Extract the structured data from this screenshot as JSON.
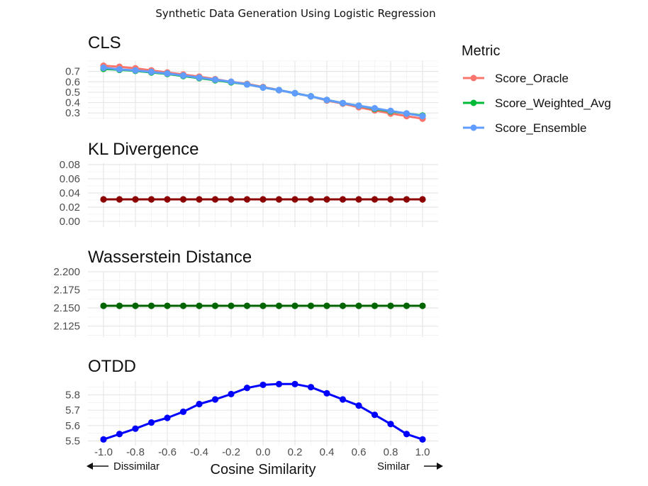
{
  "title": "Synthetic Data Generation Using Logistic Regression",
  "xlabel": "Cosine Similarity",
  "x_left_note": "Dissimilar",
  "x_right_note": "Similar",
  "x_tick_labels": [
    "-1.0",
    "-0.8",
    "-0.6",
    "-0.4",
    "-0.2",
    "0.0",
    "0.2",
    "0.4",
    "0.6",
    "0.8",
    "1.0"
  ],
  "legend": {
    "title": "Metric",
    "items": [
      {
        "label": "Score_Oracle",
        "color": "#F8766D"
      },
      {
        "label": "Score_Weighted_Avg",
        "color": "#00BA38"
      },
      {
        "label": "Score_Ensemble",
        "color": "#619CFF"
      }
    ]
  },
  "chart_data": [
    {
      "type": "line",
      "title": "CLS",
      "x": [
        -1.0,
        -0.9,
        -0.8,
        -0.7,
        -0.6,
        -0.5,
        -0.4,
        -0.3,
        -0.2,
        -0.1,
        0.0,
        0.1,
        0.2,
        0.3,
        0.4,
        0.5,
        0.6,
        0.7,
        0.8,
        0.9,
        1.0
      ],
      "ylim": [
        0.24,
        0.8
      ],
      "y_ticks": [
        0.3,
        0.4,
        0.5,
        0.6,
        0.7
      ],
      "y_tick_labels": [
        "0.3",
        "0.4",
        "0.5",
        "0.6",
        "0.7"
      ],
      "series": [
        {
          "name": "Score_Oracle",
          "color": "#F8766D",
          "values": [
            0.755,
            0.745,
            0.73,
            0.71,
            0.69,
            0.67,
            0.65,
            0.625,
            0.6,
            0.58,
            0.55,
            0.52,
            0.49,
            0.46,
            0.42,
            0.39,
            0.355,
            0.325,
            0.295,
            0.27,
            0.245
          ]
        },
        {
          "name": "Score_Weighted_Avg",
          "color": "#00BA38",
          "values": [
            0.725,
            0.715,
            0.705,
            0.69,
            0.675,
            0.655,
            0.635,
            0.615,
            0.595,
            0.575,
            0.545,
            0.52,
            0.49,
            0.46,
            0.425,
            0.395,
            0.37,
            0.34,
            0.315,
            0.295,
            0.275
          ]
        },
        {
          "name": "Score_Ensemble",
          "color": "#619CFF",
          "values": [
            0.735,
            0.72,
            0.71,
            0.695,
            0.68,
            0.66,
            0.64,
            0.62,
            0.6,
            0.575,
            0.545,
            0.52,
            0.49,
            0.46,
            0.425,
            0.395,
            0.37,
            0.345,
            0.32,
            0.295,
            0.27
          ]
        }
      ]
    },
    {
      "type": "line",
      "title": "KL Divergence",
      "x": [
        -1.0,
        -0.9,
        -0.8,
        -0.7,
        -0.6,
        -0.5,
        -0.4,
        -0.3,
        -0.2,
        -0.1,
        0.0,
        0.1,
        0.2,
        0.3,
        0.4,
        0.5,
        0.6,
        0.7,
        0.8,
        0.9,
        1.0
      ],
      "ylim": [
        -0.008,
        0.082
      ],
      "y_ticks": [
        0.0,
        0.02,
        0.04,
        0.06,
        0.08
      ],
      "y_tick_labels": [
        "0.00",
        "0.02",
        "0.04",
        "0.06",
        "0.08"
      ],
      "series": [
        {
          "name": "KL Divergence",
          "color": "#8B0000",
          "values": [
            0.031,
            0.031,
            0.031,
            0.031,
            0.031,
            0.031,
            0.031,
            0.031,
            0.031,
            0.031,
            0.031,
            0.031,
            0.031,
            0.031,
            0.031,
            0.031,
            0.031,
            0.031,
            0.031,
            0.031,
            0.031
          ]
        }
      ]
    },
    {
      "type": "line",
      "title": "Wasserstein Distance",
      "x": [
        -1.0,
        -0.9,
        -0.8,
        -0.7,
        -0.6,
        -0.5,
        -0.4,
        -0.3,
        -0.2,
        -0.1,
        0.0,
        0.1,
        0.2,
        0.3,
        0.4,
        0.5,
        0.6,
        0.7,
        0.8,
        0.9,
        1.0
      ],
      "ylim": [
        2.11,
        2.2
      ],
      "y_ticks": [
        2.125,
        2.15,
        2.175,
        2.2
      ],
      "y_tick_labels": [
        "2.125",
        "2.150",
        "2.175",
        "2.200"
      ],
      "series": [
        {
          "name": "Wasserstein Distance",
          "color": "#006400",
          "values": [
            2.153,
            2.153,
            2.153,
            2.153,
            2.153,
            2.153,
            2.153,
            2.153,
            2.153,
            2.153,
            2.153,
            2.153,
            2.153,
            2.153,
            2.153,
            2.153,
            2.153,
            2.153,
            2.153,
            2.153,
            2.153
          ]
        }
      ]
    },
    {
      "type": "line",
      "title": "OTDD",
      "x": [
        -1.0,
        -0.9,
        -0.8,
        -0.7,
        -0.6,
        -0.5,
        -0.4,
        -0.3,
        -0.2,
        -0.1,
        0.0,
        0.1,
        0.2,
        0.3,
        0.4,
        0.5,
        0.6,
        0.7,
        0.8,
        0.9,
        1.0
      ],
      "ylim": [
        5.47,
        5.89
      ],
      "y_ticks": [
        5.5,
        5.6,
        5.7,
        5.8
      ],
      "y_tick_labels": [
        "5.5",
        "5.6",
        "5.7",
        "5.8"
      ],
      "series": [
        {
          "name": "OTDD",
          "color": "#0000FF",
          "values": [
            5.51,
            5.545,
            5.58,
            5.62,
            5.65,
            5.69,
            5.74,
            5.77,
            5.805,
            5.845,
            5.865,
            5.87,
            5.87,
            5.85,
            5.81,
            5.77,
            5.73,
            5.67,
            5.61,
            5.545,
            5.51
          ]
        }
      ]
    }
  ]
}
